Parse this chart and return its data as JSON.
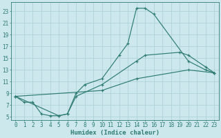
{
  "xlabel": "Humidex (Indice chaleur)",
  "bg_color": "#cce8ec",
  "grid_color": "#aacdd4",
  "line_color": "#2d7b72",
  "ylim": [
    4.5,
    24.5
  ],
  "xlim": [
    -0.5,
    23.5
  ],
  "yticks": [
    5,
    7,
    9,
    11,
    13,
    15,
    17,
    19,
    21,
    23
  ],
  "xticks": [
    0,
    1,
    2,
    3,
    4,
    5,
    6,
    7,
    8,
    9,
    10,
    11,
    12,
    13,
    14,
    15,
    16,
    17,
    18,
    19,
    20,
    21,
    22,
    23
  ],
  "curve1": {
    "x": [
      0,
      1,
      2,
      3,
      4,
      5,
      6,
      7,
      8,
      10,
      12,
      13,
      14,
      15,
      16,
      20,
      22,
      23
    ],
    "y": [
      8.5,
      7.5,
      7.5,
      5.5,
      5.2,
      5.2,
      5.5,
      9.0,
      10.5,
      11.5,
      15.5,
      17.5,
      23.5,
      23.5,
      22.5,
      14.5,
      13.0,
      12.5
    ]
  },
  "curve2": {
    "x": [
      0,
      5,
      6,
      7,
      10,
      14,
      15,
      19,
      20,
      22,
      23
    ],
    "y": [
      8.5,
      5.2,
      5.5,
      8.5,
      10.5,
      14.5,
      15.5,
      16.0,
      15.5,
      13.5,
      12.5
    ]
  },
  "curve3": {
    "x": [
      0,
      10,
      14,
      20,
      23
    ],
    "y": [
      8.5,
      9.5,
      11.5,
      13.0,
      12.5
    ]
  },
  "font_family": "monospace",
  "tick_fontsize": 5.5,
  "xlabel_fontsize": 6.5,
  "linewidth": 0.85,
  "markersize": 3.5
}
